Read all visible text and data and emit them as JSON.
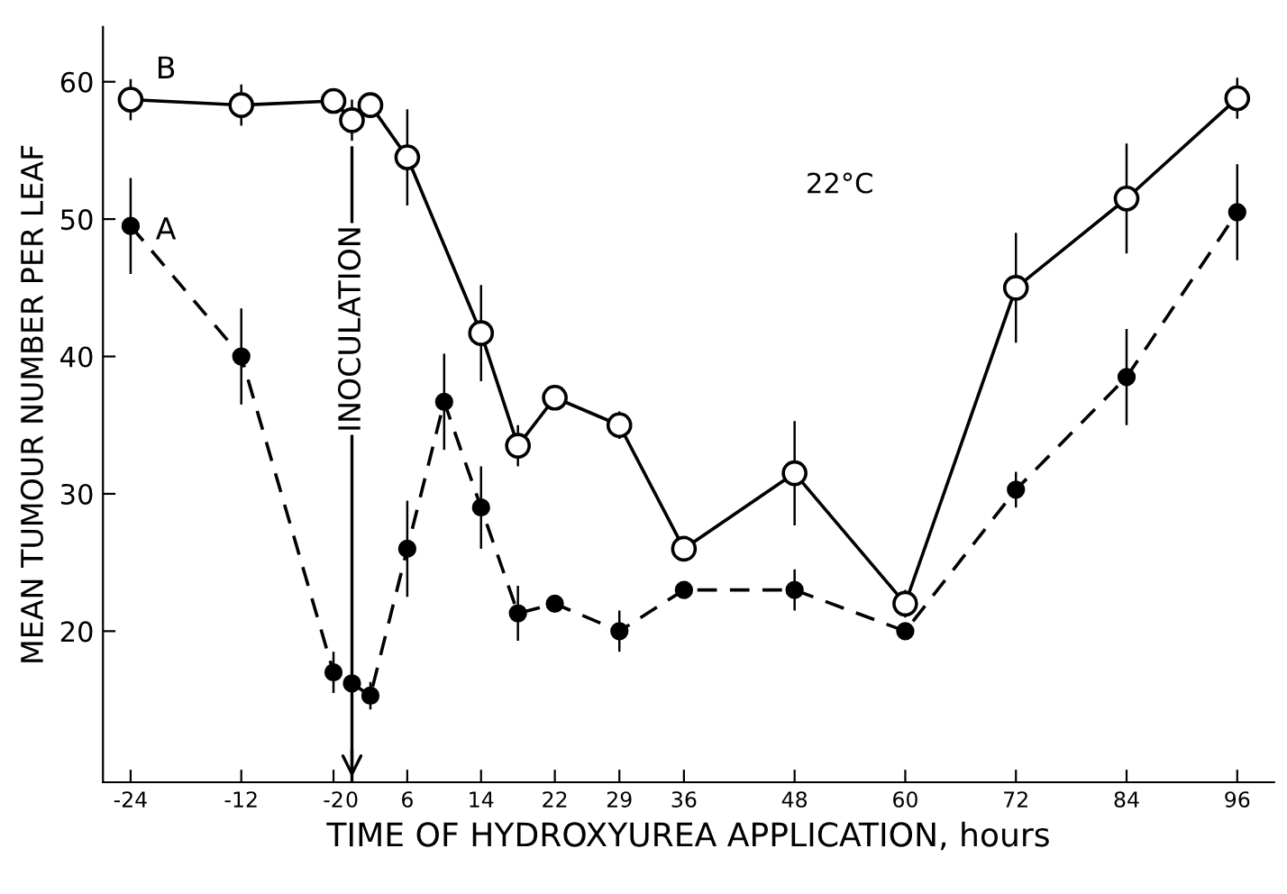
{
  "chart_data": {
    "type": "line",
    "xlabel": "TIME OF HYDROXYUREA APPLICATION, hours",
    "ylabel": "MEAN TUMOUR NUMBER PER LEAF",
    "xlim": [
      -27,
      100
    ],
    "ylim": [
      9,
      64
    ],
    "xticks": [
      -24,
      -12,
      -2,
      0,
      6,
      14,
      22,
      29,
      36,
      48,
      60,
      72,
      84,
      96
    ],
    "yticks": [
      20,
      30,
      40,
      50,
      60
    ],
    "grid": false,
    "legend": false,
    "marker": "circle",
    "annotations": [
      "22°C"
    ],
    "ref_lines": [
      {
        "axis": "x",
        "value": 0,
        "label": "INOCULATION",
        "color": "#000000",
        "line_style": "solid"
      }
    ],
    "series": [
      {
        "name": "B",
        "color": "#000000",
        "line_style": "solid",
        "x": [
          -24,
          -12,
          -2,
          0,
          2,
          6,
          14,
          18,
          22,
          29,
          36,
          48,
          60,
          72,
          84,
          96
        ],
        "values": [
          58.7,
          58.3,
          58.6,
          57.2,
          58.3,
          54.5,
          41.7,
          33.5,
          37,
          35,
          26,
          31.5,
          22,
          45,
          51.5,
          58.8
        ],
        "errors": [
          1.5,
          1.5,
          null,
          1.5,
          null,
          3.5,
          3.5,
          1.5,
          null,
          1,
          null,
          3.8,
          1,
          4,
          4,
          1.5
        ]
      },
      {
        "name": "A",
        "color": "#000000",
        "line_style": "dashed",
        "x": [
          -24,
          -12,
          -2,
          0,
          2,
          6,
          10,
          14,
          18,
          22,
          29,
          36,
          48,
          60,
          72,
          84,
          96
        ],
        "values": [
          49.5,
          40,
          17,
          16.2,
          15.3,
          26,
          36.7,
          29,
          21.3,
          22,
          20,
          23,
          23,
          20,
          30.3,
          38.5,
          50.5
        ],
        "errors": [
          3.5,
          3.5,
          1.5,
          null,
          1,
          3.5,
          3.5,
          3,
          2,
          null,
          1.5,
          null,
          1.5,
          null,
          1.3,
          3.5,
          3.5
        ]
      }
    ]
  }
}
